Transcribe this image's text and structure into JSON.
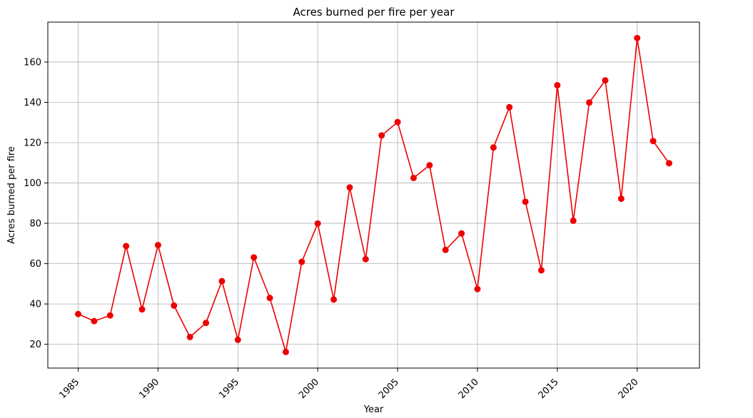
{
  "chart_data": {
    "type": "line",
    "title": "Acres burned per fire per year",
    "xlabel": "Year",
    "ylabel": "Acres burned per fire",
    "xlim": [
      1983.1,
      2023.9
    ],
    "ylim": [
      8.2,
      179.8
    ],
    "x_ticks": [
      1985,
      1990,
      1995,
      2000,
      2005,
      2010,
      2015,
      2020
    ],
    "y_ticks": [
      20,
      40,
      60,
      80,
      100,
      120,
      140,
      160
    ],
    "x_tick_rotation_deg": 45,
    "grid": true,
    "legend": "none",
    "marker": "circle",
    "color": "#ee0000",
    "series": [
      {
        "x": [
          1985,
          1986,
          1987,
          1988,
          1989,
          1990,
          1991,
          1992,
          1993,
          1994,
          1995,
          1996,
          1997,
          1998,
          1999,
          2000,
          2001,
          2002,
          2003,
          2004,
          2005,
          2006,
          2007,
          2008,
          2009,
          2010,
          2011,
          2012,
          2013,
          2014,
          2015,
          2016,
          2017,
          2018,
          2019,
          2020,
          2021,
          2022
        ],
        "values": [
          35,
          31.5,
          34.3,
          68.7,
          37.3,
          69.2,
          39.2,
          23.6,
          30.6,
          51.3,
          22.2,
          63.1,
          43.0,
          16.2,
          60.9,
          79.9,
          42.2,
          97.8,
          62.2,
          123.6,
          130.2,
          102.5,
          108.8,
          66.8,
          75.0,
          47.4,
          117.6,
          137.6,
          90.7,
          56.7,
          148.5,
          81.3,
          139.9,
          150.9,
          92.2,
          171.9,
          120.8,
          109.8
        ]
      }
    ]
  }
}
